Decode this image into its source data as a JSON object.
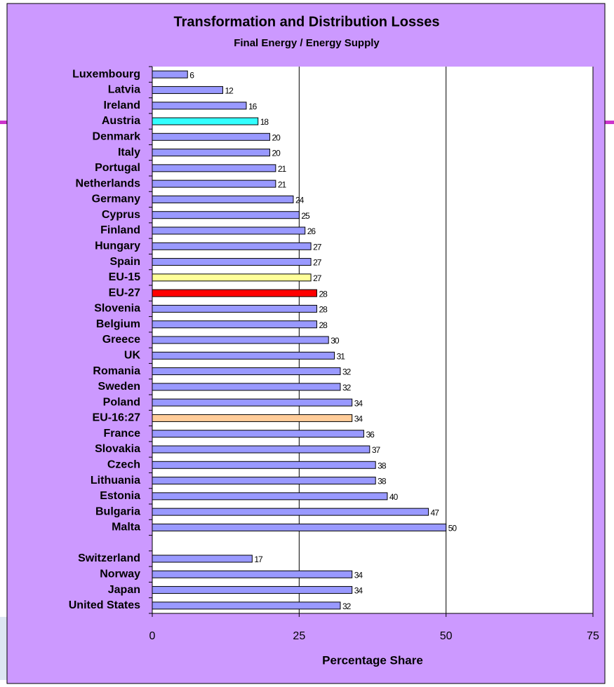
{
  "chart_data": {
    "type": "bar",
    "orientation": "horizontal",
    "title": "Transformation and Distribution Losses",
    "subtitle": "Final Energy / Energy Supply",
    "xlabel": "Percentage Share",
    "categories": [
      "Luxembourg",
      "Latvia",
      "Ireland",
      "Austria",
      "Denmark",
      "Italy",
      "Portugal",
      "Netherlands",
      "Germany",
      "Cyprus",
      "Finland",
      "Hungary",
      "Spain",
      "EU-15",
      "EU-27",
      "Slovenia",
      "Belgium",
      "Greece",
      "UK",
      "Romania",
      "Sweden",
      "Poland",
      "EU-16:27",
      "France",
      "Slovakia",
      "Czech",
      "Lithuania",
      "Estonia",
      "Bulgaria",
      "Malta",
      null,
      "Switzerland",
      "Norway",
      "Japan",
      "United States"
    ],
    "values": [
      6,
      12,
      16,
      18,
      20,
      20,
      21,
      21,
      24,
      25,
      26,
      27,
      27,
      27,
      28,
      28,
      28,
      30,
      31,
      32,
      32,
      34,
      34,
      36,
      37,
      38,
      38,
      40,
      47,
      50,
      null,
      17,
      34,
      34,
      32
    ],
    "color": "#9999ff",
    "colors": [
      "#9999ff",
      "#9999ff",
      "#9999ff",
      "#33ffff",
      "#9999ff",
      "#9999ff",
      "#9999ff",
      "#9999ff",
      "#9999ff",
      "#9999ff",
      "#9999ff",
      "#9999ff",
      "#9999ff",
      "#ffff99",
      "#ff0000",
      "#9999ff",
      "#9999ff",
      "#9999ff",
      "#9999ff",
      "#9999ff",
      "#9999ff",
      "#9999ff",
      "#ffcc99",
      "#9999ff",
      "#9999ff",
      "#9999ff",
      "#9999ff",
      "#9999ff",
      "#9999ff",
      "#9999ff",
      null,
      "#9999ff",
      "#9999ff",
      "#9999ff",
      "#9999ff"
    ],
    "xlim": [
      0,
      75
    ],
    "xticks": [
      0,
      25,
      50,
      75
    ],
    "grid": true
  }
}
